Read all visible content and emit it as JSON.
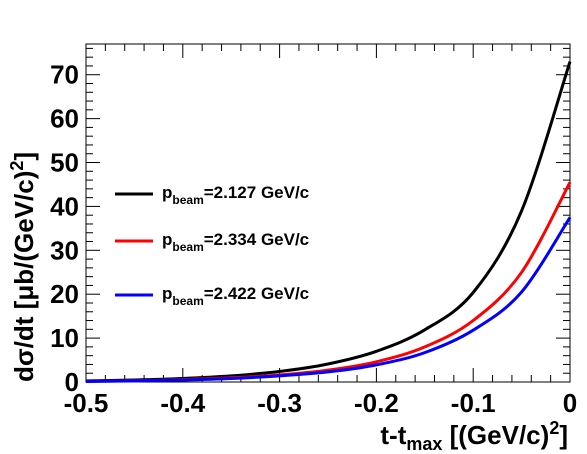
{
  "chart_data": {
    "type": "line",
    "xlabel": {
      "main": "t-t",
      "sub": "max",
      "rest": " [(GeV/c)",
      "sup": "2",
      "close": "]"
    },
    "ylabel": {
      "main": "dσ/dt [μb/(GeV/c)",
      "sup": "2",
      "close": "]"
    },
    "xlim": [
      -0.5,
      0.0
    ],
    "ylim": [
      0,
      77
    ],
    "x_ticks": [
      -0.5,
      -0.4,
      -0.3,
      -0.2,
      -0.1,
      0
    ],
    "x_tick_labels": [
      "-0.5",
      "-0.4",
      "-0.3",
      "-0.2",
      "-0.1",
      "0"
    ],
    "y_ticks": [
      0,
      10,
      20,
      30,
      40,
      50,
      60,
      70
    ],
    "y_tick_labels": [
      "0",
      "10",
      "20",
      "30",
      "40",
      "50",
      "60",
      "70"
    ],
    "grid": false,
    "legend_position": "left",
    "x": [
      -0.5,
      -0.45,
      -0.4,
      -0.35,
      -0.3,
      -0.25,
      -0.2,
      -0.15,
      -0.1,
      -0.05,
      0.0
    ],
    "series": [
      {
        "name": {
          "main": "p",
          "sub": "beam",
          "rest": "=2.127 GeV/c"
        },
        "color": "#000000",
        "values": [
          0.25,
          0.45,
          0.8,
          1.4,
          2.4,
          4.1,
          7.0,
          11.9,
          20.4,
          39.0,
          73.0
        ]
      },
      {
        "name": {
          "main": "p",
          "sub": "beam",
          "rest": "=2.334 GeV/c"
        },
        "color": "#ff0000",
        "values": [
          0.15,
          0.3,
          0.55,
          0.95,
          1.6,
          2.7,
          4.6,
          8.0,
          14.0,
          25.0,
          45.5
        ]
      },
      {
        "name": {
          "main": "p",
          "sub": "beam",
          "rest": "=2.422 GeV/c"
        },
        "color": "#0000ff",
        "values": [
          0.12,
          0.25,
          0.45,
          0.8,
          1.4,
          2.3,
          3.9,
          6.7,
          11.8,
          20.5,
          37.5
        ]
      }
    ]
  }
}
